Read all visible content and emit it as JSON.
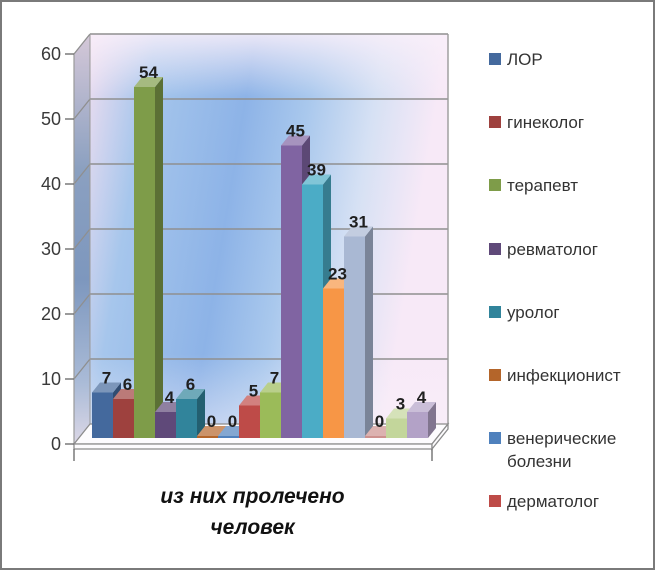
{
  "frame": {
    "background": "#FFFFFF",
    "border_color": "#7A7A7A"
  },
  "chart_data": {
    "type": "bar",
    "variant": "3d-clustered-column",
    "title": "",
    "category_label": "из них пролечено человек",
    "category_label_lines": [
      "из них пролечено",
      "человек"
    ],
    "xlabel": "",
    "ylabel": "",
    "ylim": [
      0,
      60
    ],
    "y_ticks": [
      0,
      10,
      20,
      30,
      40,
      50,
      60
    ],
    "grid": true,
    "legend_position": "right",
    "wall_gradient": [
      "#EFDEF0",
      "#A6C6EC",
      "#8DB3E7",
      "#A9C8ED",
      "#D6E1F4",
      "#F7E9F7"
    ],
    "bars": [
      {
        "value": 7,
        "label": "7",
        "color": "#44699D"
      },
      {
        "value": 6,
        "label": "6",
        "color": "#9E413E"
      },
      {
        "value": 54,
        "label": "54",
        "color": "#7E9C49"
      },
      {
        "value": 4,
        "label": "4",
        "color": "#5F4979"
      },
      {
        "value": 6,
        "label": "6",
        "color": "#31849B"
      },
      {
        "value": 0,
        "label": "0",
        "color": "#B4652A"
      },
      {
        "value": 0,
        "label": "0",
        "color": "#4F81BD"
      },
      {
        "value": 5,
        "label": "5",
        "color": "#BE4B48"
      },
      {
        "value": 7,
        "label": "7",
        "color": "#9BBB59"
      },
      {
        "value": 45,
        "label": "45",
        "color": "#8064A2"
      },
      {
        "value": 39,
        "label": "39",
        "color": "#4BACC6"
      },
      {
        "value": 23,
        "label": "23",
        "color": "#F79646"
      },
      {
        "value": 31,
        "label": "31",
        "color": "#A9B8D3"
      },
      {
        "value": 0,
        "label": "0",
        "color": "#CD918E"
      },
      {
        "value": 3,
        "label": "3",
        "color": "#C3D69B"
      },
      {
        "value": 4,
        "label": "4",
        "color": "#B3A2C7"
      }
    ],
    "legend": [
      {
        "label": "ЛОР",
        "color": "#44699D"
      },
      {
        "label": "гинеколог",
        "color": "#9E413E"
      },
      {
        "label": "терапевт",
        "color": "#7E9C49"
      },
      {
        "label": "ревматолог",
        "color": "#5F4979"
      },
      {
        "label": "уролог",
        "color": "#31849B"
      },
      {
        "label": "инфекционист",
        "color": "#B4652A"
      },
      {
        "label": "венерические болезни",
        "color": "#4F81BD"
      },
      {
        "label": "дерматолог",
        "color": "#BE4B48"
      }
    ],
    "text_colors": {
      "axis_ticks": "#3A3A3A",
      "data_labels": "#1F1F1F",
      "legend": "#333333",
      "axis_title": "#111111"
    }
  }
}
